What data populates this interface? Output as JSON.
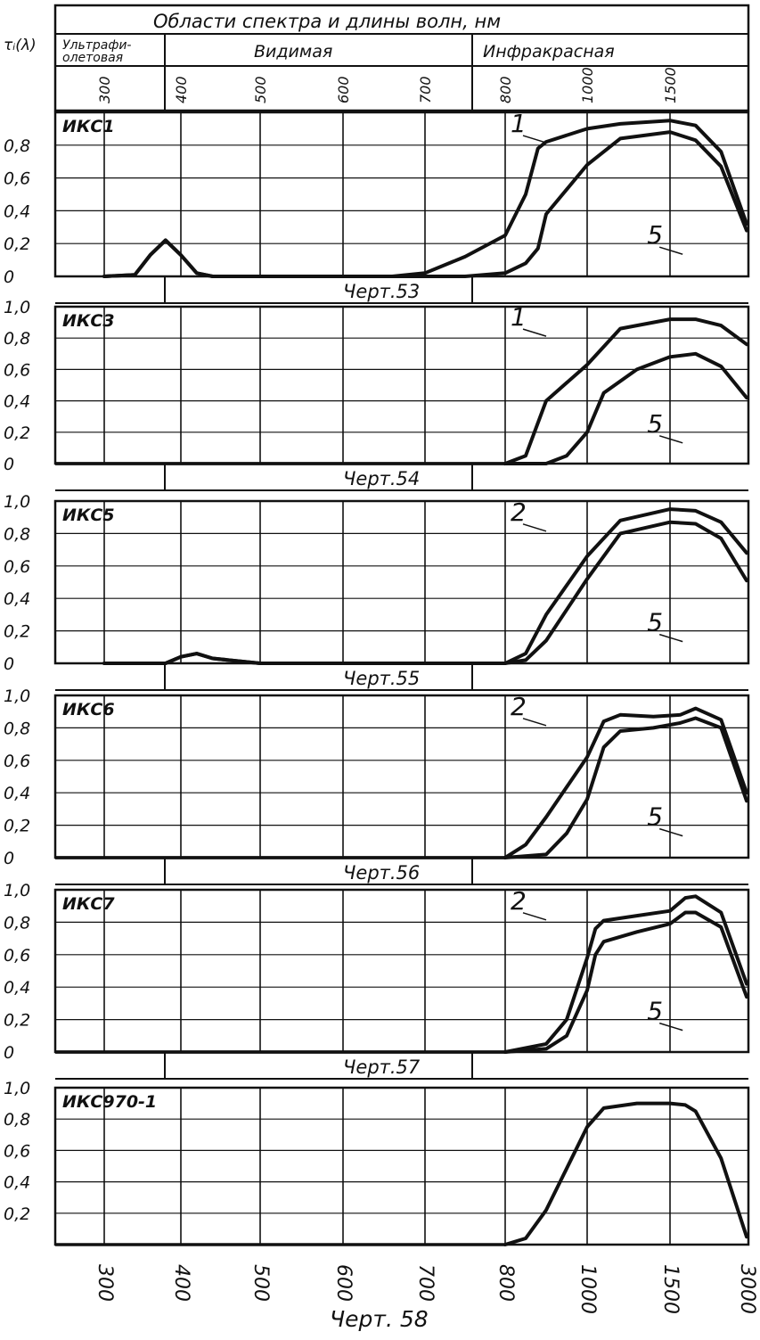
{
  "header": {
    "title": "Области спектра и длины волн,   нм",
    "ylabel": "τᵢ(λ)",
    "regions": [
      "Ультрафи-",
      "олетовая",
      "Видимая",
      "Инфракрасная"
    ],
    "wavelength_ticks": [
      "300",
      "400",
      "500",
      "600",
      "700",
      "800",
      "1000",
      "1500"
    ]
  },
  "bottom_ticks": [
    "300",
    "400",
    "500",
    "600",
    "700",
    "800",
    "1000",
    "1500",
    "3000"
  ],
  "footer_caption": "Черт. 58",
  "chart_data": [
    {
      "type": "line",
      "title": "ИКС1",
      "caption": "Черт.53",
      "ylim": [
        0,
        1.0
      ],
      "y_ticks": [
        "0",
        "0,2",
        "0,4",
        "0,6",
        "0,8"
      ],
      "x_ticks": [
        "300",
        "400",
        "500",
        "600",
        "700",
        "800",
        "1000",
        "1500",
        "3000"
      ],
      "grid": true,
      "series": [
        {
          "name": "1",
          "x": [
            300,
            340,
            360,
            380,
            400,
            420,
            440,
            500,
            600,
            660,
            700,
            750,
            800,
            850,
            880,
            900,
            1000,
            1200,
            1500,
            2000,
            2500,
            3000
          ],
          "y": [
            0,
            0.01,
            0.13,
            0.22,
            0.13,
            0.02,
            0,
            0,
            0,
            0,
            0.02,
            0.12,
            0.25,
            0.5,
            0.78,
            0.82,
            0.9,
            0.93,
            0.95,
            0.92,
            0.76,
            0.32
          ]
        },
        {
          "name": "5",
          "x": [
            300,
            340,
            360,
            380,
            400,
            420,
            440,
            500,
            600,
            700,
            750,
            800,
            850,
            880,
            900,
            1000,
            1200,
            1500,
            2000,
            2500,
            3000
          ],
          "y": [
            0,
            0.01,
            0.13,
            0.22,
            0.13,
            0.02,
            0,
            0,
            0,
            0,
            0,
            0.02,
            0.08,
            0.17,
            0.38,
            0.68,
            0.84,
            0.88,
            0.83,
            0.67,
            0.28
          ]
        }
      ]
    },
    {
      "type": "line",
      "title": "ИКС3",
      "caption": "Черт.54",
      "ylim": [
        0,
        1.0
      ],
      "y_ticks": [
        "0",
        "0,2",
        "0,4",
        "0,6",
        "0,8",
        "1,0"
      ],
      "x_ticks": [
        "300",
        "400",
        "500",
        "600",
        "700",
        "800",
        "1000",
        "1500",
        "3000"
      ],
      "grid": true,
      "series": [
        {
          "name": "1",
          "x": [
            800,
            850,
            900,
            1000,
            1200,
            1500,
            2000,
            2500,
            3000
          ],
          "y": [
            0,
            0.05,
            0.4,
            0.63,
            0.86,
            0.92,
            0.92,
            0.88,
            0.76
          ]
        },
        {
          "name": "5",
          "x": [
            800,
            900,
            950,
            1000,
            1100,
            1300,
            1500,
            2000,
            2500,
            3000
          ],
          "y": [
            0,
            0,
            0.05,
            0.2,
            0.45,
            0.6,
            0.68,
            0.7,
            0.62,
            0.42
          ]
        }
      ]
    },
    {
      "type": "line",
      "title": "ИКС5",
      "caption": "Черт.55",
      "ylim": [
        0,
        1.0
      ],
      "y_ticks": [
        "0",
        "0,2",
        "0,4",
        "0,6",
        "0,8",
        "1,0"
      ],
      "x_ticks": [
        "300",
        "400",
        "500",
        "600",
        "700",
        "800",
        "1000",
        "1500",
        "3000"
      ],
      "grid": true,
      "series": [
        {
          "name": "2",
          "x": [
            300,
            380,
            400,
            420,
            440,
            500,
            600,
            700,
            800,
            850,
            900,
            1000,
            1200,
            1500,
            2000,
            2500,
            3000
          ],
          "y": [
            0,
            0,
            0.04,
            0.06,
            0.03,
            0,
            0,
            0,
            0,
            0.06,
            0.3,
            0.66,
            0.88,
            0.95,
            0.94,
            0.87,
            0.68
          ]
        },
        {
          "name": "5",
          "x": [
            300,
            380,
            400,
            420,
            440,
            500,
            600,
            700,
            800,
            850,
            900,
            1000,
            1200,
            1500,
            2000,
            2500,
            3000
          ],
          "y": [
            0,
            0,
            0.04,
            0.06,
            0.03,
            0,
            0,
            0,
            0,
            0.02,
            0.14,
            0.52,
            0.8,
            0.87,
            0.86,
            0.77,
            0.51
          ]
        }
      ]
    },
    {
      "type": "line",
      "title": "ИКС6",
      "caption": "Черт.56",
      "ylim": [
        0,
        1.0
      ],
      "y_ticks": [
        "0",
        "0,2",
        "0,4",
        "0,6",
        "0,8",
        "1,0"
      ],
      "x_ticks": [
        "300",
        "400",
        "500",
        "600",
        "700",
        "800",
        "1000",
        "1500",
        "3000"
      ],
      "grid": true,
      "series": [
        {
          "name": "2",
          "x": [
            800,
            850,
            900,
            1000,
            1100,
            1200,
            1400,
            1700,
            2000,
            2500,
            3000
          ],
          "y": [
            0,
            0.08,
            0.25,
            0.62,
            0.84,
            0.88,
            0.87,
            0.88,
            0.92,
            0.85,
            0.4
          ]
        },
        {
          "name": "5",
          "x": [
            800,
            900,
            950,
            1000,
            1100,
            1200,
            1400,
            1700,
            2000,
            2500,
            3000
          ],
          "y": [
            0,
            0.02,
            0.15,
            0.36,
            0.68,
            0.78,
            0.8,
            0.83,
            0.86,
            0.8,
            0.35
          ]
        }
      ]
    },
    {
      "type": "line",
      "title": "ИКС7",
      "caption": "Черт.57",
      "ylim": [
        0,
        1.0
      ],
      "y_ticks": [
        "0",
        "0,2",
        "0,4",
        "0,6",
        "0,8",
        "1,0"
      ],
      "x_ticks": [
        "300",
        "400",
        "500",
        "600",
        "700",
        "800",
        "1000",
        "1500",
        "3000"
      ],
      "grid": true,
      "series": [
        {
          "name": "2",
          "x": [
            800,
            900,
            950,
            1000,
            1050,
            1100,
            1300,
            1500,
            1800,
            2000,
            2500,
            3000
          ],
          "y": [
            0,
            0.05,
            0.2,
            0.58,
            0.76,
            0.81,
            0.84,
            0.87,
            0.95,
            0.96,
            0.86,
            0.42
          ]
        },
        {
          "name": "5",
          "x": [
            800,
            900,
            950,
            1000,
            1050,
            1100,
            1300,
            1500,
            1800,
            2000,
            2500,
            3000
          ],
          "y": [
            0,
            0.02,
            0.1,
            0.38,
            0.6,
            0.68,
            0.74,
            0.79,
            0.86,
            0.86,
            0.77,
            0.34
          ]
        }
      ]
    },
    {
      "type": "line",
      "title": "ИКС970-1",
      "caption": "",
      "ylim": [
        0,
        1.0
      ],
      "y_ticks": [
        "0,2",
        "0,4",
        "0,6",
        "0,8",
        "1,0"
      ],
      "x_ticks": [
        "300",
        "400",
        "500",
        "600",
        "700",
        "800",
        "1000",
        "1500",
        "3000"
      ],
      "grid": true,
      "series": [
        {
          "name": "",
          "x": [
            800,
            850,
            900,
            1000,
            1100,
            1300,
            1500,
            1800,
            2000,
            2500,
            3000
          ],
          "y": [
            0,
            0.04,
            0.22,
            0.75,
            0.87,
            0.9,
            0.9,
            0.89,
            0.85,
            0.55,
            0.05
          ]
        }
      ]
    }
  ]
}
